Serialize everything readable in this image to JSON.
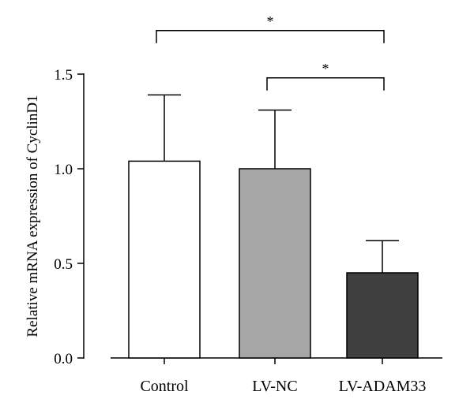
{
  "chart_data": {
    "type": "bar",
    "title": "",
    "xlabel": "",
    "ylabel": "Relative mRNA expression of CyclinD1",
    "ylim": [
      0,
      1.5
    ],
    "yticks": [
      "0.0",
      "0.5",
      "1.0",
      "1.5"
    ],
    "grid": false,
    "categories": [
      "Control",
      "LV-NC",
      "LV-ADAM33"
    ],
    "values": [
      1.04,
      1.0,
      0.45
    ],
    "errors": [
      0.35,
      0.31,
      0.17
    ],
    "bar_colors": [
      "#ffffff",
      "#a6a6a6",
      "#404040"
    ],
    "significance": [
      {
        "from": 0,
        "to": 2,
        "label": "*",
        "y": 1.73
      },
      {
        "from": 1,
        "to": 2,
        "label": "*",
        "y": 1.48
      }
    ]
  }
}
